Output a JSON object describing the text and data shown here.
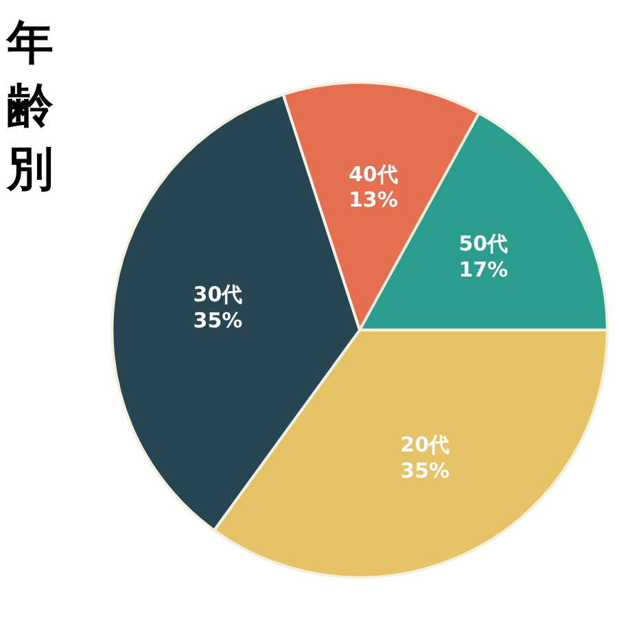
{
  "chart_data": {
    "type": "pie",
    "title": "年齢別",
    "categories": [
      "20代",
      "30代",
      "40代",
      "50代"
    ],
    "values": [
      35,
      35,
      13,
      17
    ],
    "colors": [
      "#e6c367",
      "#264653",
      "#e76f51",
      "#2a9d8f"
    ],
    "value_labels": [
      "35%",
      "35%",
      "13%",
      "17%"
    ]
  }
}
